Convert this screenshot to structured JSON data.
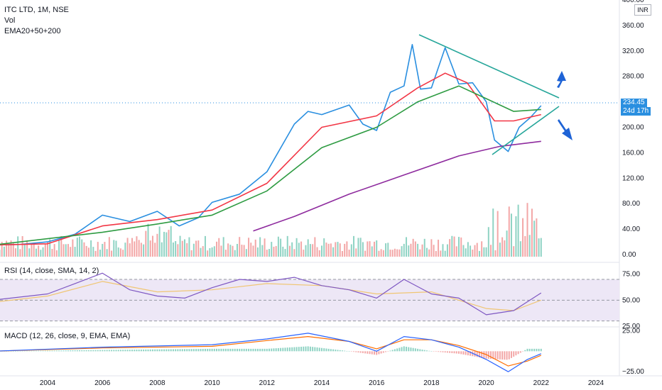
{
  "header": {
    "title": "ITC LTD, 1M, NSE",
    "vol_label": "Vol",
    "ema_label": "EMA20+50+200"
  },
  "currency": "INR",
  "price_badge": {
    "value": "234.45",
    "countdown": "24d 17h"
  },
  "rsi_label": "RSI (14, close, SMA, 14, 2)",
  "macd_label": "MACD (12, 26, close, 9, EMA, EMA)",
  "colors": {
    "price": "#2a8fe0",
    "ema20": "#f23645",
    "ema50": "#2e9b42",
    "ema200": "#8e2b9e",
    "trend": "#26a69a",
    "arrow": "#1e63d6",
    "rsi": "#7e57c2",
    "rsi_ma": "#f0c674",
    "rsi_band": "#ede7f6",
    "macd": "#2962ff",
    "signal": "#ff6d00",
    "vol_up": "#8fd3c4",
    "vol_down": "#f3a7a7"
  },
  "chart_data": [
    {
      "type": "line",
      "title": "ITC LTD, 1M, NSE",
      "ylim": [
        -10,
        400
      ],
      "y_ticks": [
        "400.00",
        "360.00",
        "320.00",
        "280.00",
        "240.00",
        "200.00",
        "160.00",
        "120.00",
        "80.00",
        "40.00",
        "0.00"
      ],
      "x_ticks": [
        "2004",
        "2006",
        "2008",
        "2010",
        "2012",
        "2014",
        "2016",
        "2018",
        "2020",
        "2022",
        "2024"
      ],
      "series": [
        {
          "name": "ITC LTD",
          "values": [
            [
              2002.0,
              15
            ],
            [
              2003.0,
              16
            ],
            [
              2004.0,
              20
            ],
            [
              2005.0,
              32
            ],
            [
              2006.0,
              62
            ],
            [
              2007.0,
              52
            ],
            [
              2008.0,
              68
            ],
            [
              2008.8,
              45
            ],
            [
              2009.5,
              58
            ],
            [
              2010.0,
              82
            ],
            [
              2011.0,
              95
            ],
            [
              2012.0,
              130
            ],
            [
              2013.0,
              205
            ],
            [
              2013.5,
              225
            ],
            [
              2014.0,
              220
            ],
            [
              2015.0,
              235
            ],
            [
              2015.5,
              205
            ],
            [
              2016.0,
              195
            ],
            [
              2016.5,
              255
            ],
            [
              2017.0,
              265
            ],
            [
              2017.3,
              330
            ],
            [
              2017.6,
              260
            ],
            [
              2018.0,
              262
            ],
            [
              2018.5,
              325
            ],
            [
              2019.0,
              268
            ],
            [
              2019.5,
              270
            ],
            [
              2020.0,
              240
            ],
            [
              2020.3,
              180
            ],
            [
              2020.8,
              162
            ],
            [
              2021.2,
              200
            ],
            [
              2021.6,
              215
            ],
            [
              2022.0,
              234
            ]
          ]
        },
        {
          "name": "EMA20",
          "values": [
            [
              2002.0,
              15
            ],
            [
              2004.0,
              17
            ],
            [
              2006.0,
              45
            ],
            [
              2008.0,
              55
            ],
            [
              2010.0,
              70
            ],
            [
              2012.0,
              112
            ],
            [
              2014.0,
              200
            ],
            [
              2016.0,
              218
            ],
            [
              2017.5,
              262
            ],
            [
              2018.5,
              285
            ],
            [
              2019.3,
              270
            ],
            [
              2020.3,
              210
            ],
            [
              2021.0,
              210
            ],
            [
              2022.0,
              220
            ]
          ]
        },
        {
          "name": "EMA50",
          "values": [
            [
              2002.0,
              15
            ],
            [
              2006.0,
              35
            ],
            [
              2008.0,
              48
            ],
            [
              2010.0,
              62
            ],
            [
              2012.0,
              100
            ],
            [
              2014.0,
              168
            ],
            [
              2016.0,
              200
            ],
            [
              2017.5,
              240
            ],
            [
              2019.0,
              265
            ],
            [
              2020.0,
              245
            ],
            [
              2021.0,
              225
            ],
            [
              2022.0,
              228
            ]
          ]
        },
        {
          "name": "EMA200",
          "values": [
            [
              2011.5,
              37
            ],
            [
              2013.0,
              60
            ],
            [
              2015.0,
              95
            ],
            [
              2017.0,
              125
            ],
            [
              2019.0,
              155
            ],
            [
              2020.5,
              170
            ],
            [
              2022.0,
              178
            ]
          ]
        }
      ]
    },
    {
      "type": "line",
      "title": "RSI (14, close, SMA, 14, 2)",
      "ylim": [
        25,
        85
      ],
      "y_ticks": [
        "75.00",
        "50.00",
        "25.00"
      ],
      "series": [
        {
          "name": "RSI",
          "values": [
            [
              2002,
              50
            ],
            [
              2004,
              56
            ],
            [
              2005,
              66
            ],
            [
              2006,
              76
            ],
            [
              2007,
              60
            ],
            [
              2008,
              54
            ],
            [
              2009,
              52
            ],
            [
              2010,
              62
            ],
            [
              2011,
              70
            ],
            [
              2012,
              68
            ],
            [
              2013,
              72
            ],
            [
              2014,
              64
            ],
            [
              2015,
              60
            ],
            [
              2016,
              52
            ],
            [
              2017,
              70
            ],
            [
              2018,
              56
            ],
            [
              2019,
              52
            ],
            [
              2020,
              36
            ],
            [
              2021,
              40
            ],
            [
              2022,
              57
            ]
          ]
        },
        {
          "values": [
            [
              2002,
              48
            ],
            [
              2004,
              54
            ],
            [
              2006,
              68
            ],
            [
              2008,
              58
            ],
            [
              2010,
              60
            ],
            [
              2012,
              66
            ],
            [
              2014,
              64
            ],
            [
              2016,
              56
            ],
            [
              2018,
              58
            ],
            [
              2020,
              42
            ],
            [
              2021,
              40
            ],
            [
              2022,
              50
            ]
          ]
        }
      ]
    },
    {
      "type": "line",
      "title": "MACD (12, 26, close, 9, EMA, EMA)",
      "ylim": [
        -30,
        28
      ],
      "y_ticks": [
        "25.00",
        "−25.00"
      ],
      "series": [
        {
          "name": "MACD",
          "values": [
            [
              2002,
              0
            ],
            [
              2006,
              5
            ],
            [
              2010,
              8
            ],
            [
              2012,
              15
            ],
            [
              2013.5,
              22
            ],
            [
              2015,
              12
            ],
            [
              2016,
              0
            ],
            [
              2017,
              18
            ],
            [
              2018,
              14
            ],
            [
              2019,
              5
            ],
            [
              2020,
              -10
            ],
            [
              2020.8,
              -25
            ],
            [
              2021.5,
              -10
            ],
            [
              2022,
              -3
            ]
          ]
        },
        {
          "values": [
            [
              2002,
              0
            ],
            [
              2006,
              4
            ],
            [
              2010,
              6
            ],
            [
              2012,
              13
            ],
            [
              2013.5,
              18
            ],
            [
              2015,
              12
            ],
            [
              2016,
              3
            ],
            [
              2017,
              14
            ],
            [
              2018,
              14
            ],
            [
              2019,
              7
            ],
            [
              2020,
              -4
            ],
            [
              2020.8,
              -18
            ],
            [
              2021.5,
              -12
            ],
            [
              2022,
              -5
            ]
          ]
        }
      ]
    }
  ]
}
